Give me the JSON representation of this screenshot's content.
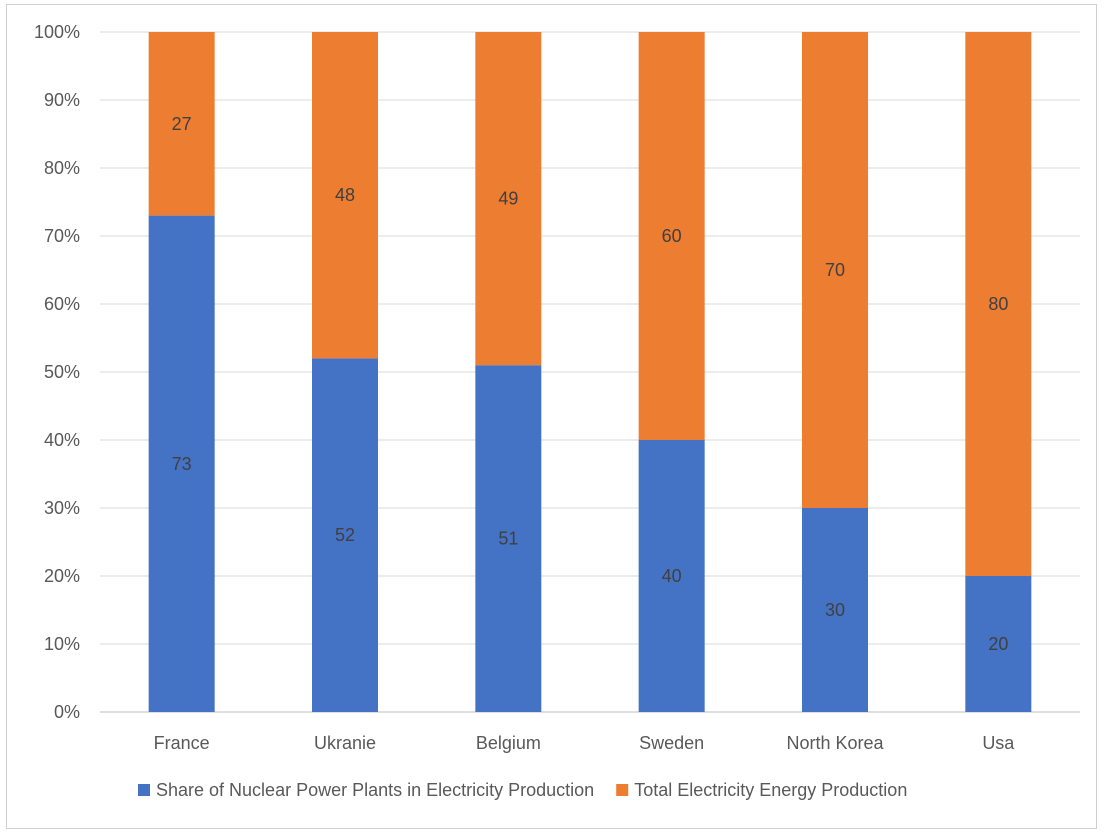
{
  "chart_data": {
    "type": "bar",
    "stacked": true,
    "percent_stacked": true,
    "categories": [
      "France",
      "Ukranie",
      "Belgium",
      "Sweden",
      "North Korea",
      "Usa"
    ],
    "series": [
      {
        "name": "Share of Nuclear Power Plants in Electricity Production",
        "values": [
          73,
          52,
          51,
          40,
          30,
          20
        ],
        "color": "#4472C4"
      },
      {
        "name": "Total Electricity Energy Production",
        "values": [
          27,
          48,
          49,
          60,
          70,
          80
        ],
        "color": "#ED7D31"
      }
    ],
    "y_ticks": [
      "0%",
      "10%",
      "20%",
      "30%",
      "40%",
      "50%",
      "60%",
      "70%",
      "80%",
      "90%",
      "100%"
    ],
    "ylim": [
      0,
      100
    ],
    "grid": true,
    "legend_position": "bottom",
    "data_labels": true
  }
}
